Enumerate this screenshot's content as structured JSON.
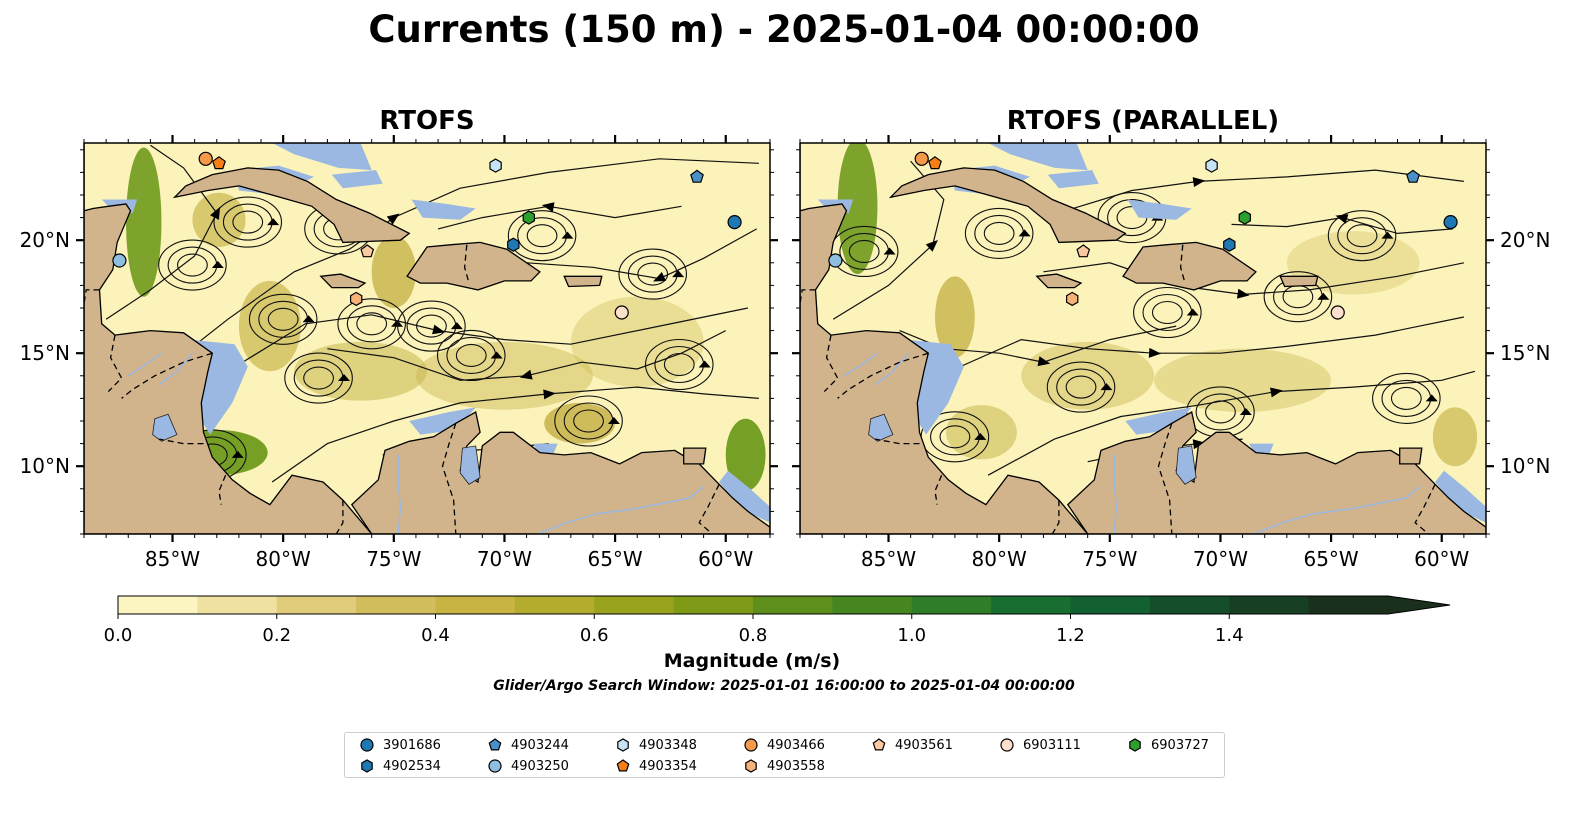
{
  "title": "Currents (150 m) - 2025-01-04 00:00:00",
  "panels": [
    {
      "title": "RTOFS"
    },
    {
      "title": "RTOFS (PARALLEL)"
    }
  ],
  "map": {
    "lon_range": [
      -89,
      -58
    ],
    "lat_range": [
      7,
      24.3
    ],
    "lon_ticks": [
      {
        "value": -85,
        "label": "85°W"
      },
      {
        "value": -80,
        "label": "80°W"
      },
      {
        "value": -75,
        "label": "75°W"
      },
      {
        "value": -70,
        "label": "70°W"
      },
      {
        "value": -65,
        "label": "65°W"
      },
      {
        "value": -60,
        "label": "60°W"
      }
    ],
    "lat_ticks": [
      {
        "value": 20,
        "label": "20°N"
      },
      {
        "value": 15,
        "label": "15°N"
      },
      {
        "value": 10,
        "label": "10°N"
      }
    ],
    "colors": {
      "land": "#d2b48c",
      "shallow": "#9ab8e2",
      "ocean_low": "#fbf3b9",
      "ocean_mid": "#c9b650",
      "ocean_high": "#6f9a1e",
      "coast": "#000000"
    }
  },
  "colorbar": {
    "label": "Magnitude (m/s)",
    "min": 0.0,
    "max": 1.6,
    "ticks": [
      "0.0",
      "0.2",
      "0.4",
      "0.6",
      "0.8",
      "1.0",
      "1.2",
      "1.4"
    ],
    "colors": [
      "#fcf5c2",
      "#efe19f",
      "#e1cc7c",
      "#d3be5e",
      "#c7b442",
      "#b3ac2f",
      "#9aa31e",
      "#7e9a17",
      "#5e8f1c",
      "#468621",
      "#2f7c29",
      "#186e30",
      "#125f2f",
      "#144e2a",
      "#173f24",
      "#1a301d"
    ]
  },
  "search_window": "Glider/Argo Search Window: 2025-01-01 16:00:00 to 2025-01-04 00:00:00",
  "chart_data": {
    "type": "map",
    "variable": "Magnitude (m/s)",
    "depth_label": "150 m",
    "floats": [
      {
        "id": "3901686",
        "marker": "circle",
        "color": "#1f77b4",
        "lon": -59.6,
        "lat": 20.8
      },
      {
        "id": "4902534",
        "marker": "hexagon",
        "color": "#1f77b4",
        "lon": -69.6,
        "lat": 19.8
      },
      {
        "id": "4903244",
        "marker": "pentagon",
        "color": "#4a90c8",
        "lon": -61.3,
        "lat": 22.8
      },
      {
        "id": "4903250",
        "marker": "circle",
        "color": "#8fbfe0",
        "lon": -87.4,
        "lat": 19.1
      },
      {
        "id": "4903348",
        "marker": "hexagon",
        "color": "#c6e4f6",
        "lon": -70.4,
        "lat": 23.3
      },
      {
        "id": "4903354",
        "marker": "pentagon",
        "color": "#f57f17",
        "lon": -82.9,
        "lat": 23.4
      },
      {
        "id": "4903466",
        "marker": "circle",
        "color": "#f59a4a",
        "lon": -83.5,
        "lat": 23.6
      },
      {
        "id": "4903558",
        "marker": "hexagon",
        "color": "#f7b27a",
        "lon": -76.7,
        "lat": 17.4
      },
      {
        "id": "4903561",
        "marker": "pentagon",
        "color": "#fac9a2",
        "lon": -76.2,
        "lat": 19.5
      },
      {
        "id": "6903111",
        "marker": "circle",
        "color": "#fde0cc",
        "lon": -64.7,
        "lat": 16.8
      },
      {
        "id": "6903727",
        "marker": "hexagon",
        "color": "#2ca02c",
        "lon": -68.9,
        "lat": 21.0
      }
    ]
  }
}
